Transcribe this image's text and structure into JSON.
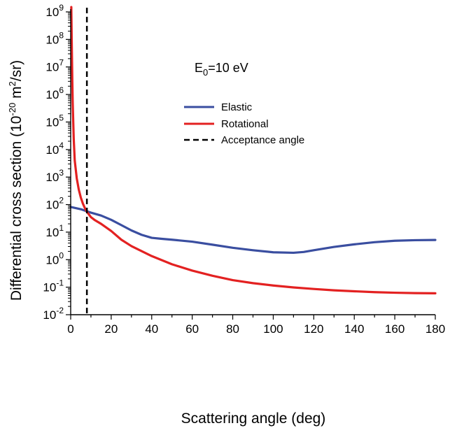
{
  "chart_data": {
    "type": "line",
    "xlabel": "Scattering angle (deg)",
    "ylabel_parts": {
      "prefix": "Differential cross section (10",
      "exp": "-20",
      "mid": " m",
      "exp2": "2",
      "suffix": "/sr)"
    },
    "xlim": [
      0,
      180
    ],
    "ylim": [
      0.01,
      1000000000
    ],
    "yscale": "log",
    "grid": false,
    "legend_position": "upper-middle",
    "x_ticks": [
      0,
      20,
      40,
      60,
      80,
      100,
      120,
      140,
      160,
      180
    ],
    "y_tick_exponents": [
      -2,
      -1,
      0,
      1,
      2,
      3,
      4,
      5,
      6,
      7,
      8,
      9
    ],
    "y_tick_base": "10",
    "annotation": {
      "main": "E",
      "sub": "0",
      "rest": "=10 eV"
    },
    "series": [
      {
        "name": "Elastic",
        "color": "#3a4ea0",
        "style": "solid",
        "x": [
          0,
          5,
          8,
          10,
          15,
          20,
          25,
          30,
          35,
          40,
          45,
          50,
          60,
          70,
          80,
          90,
          100,
          110,
          115,
          120,
          130,
          140,
          150,
          160,
          170,
          180
        ],
        "y": [
          82,
          68,
          57,
          51,
          40,
          28,
          18,
          11.5,
          8,
          6.2,
          5.7,
          5.3,
          4.5,
          3.5,
          2.7,
          2.2,
          1.85,
          1.78,
          1.9,
          2.2,
          2.9,
          3.6,
          4.3,
          4.85,
          5.1,
          5.2
        ]
      },
      {
        "name": "Rotational",
        "color": "#e32121",
        "style": "solid",
        "x": [
          0.3,
          0.5,
          0.8,
          1,
          1.5,
          2,
          3,
          4,
          5,
          6,
          7,
          8,
          10,
          12,
          15,
          20,
          25,
          30,
          40,
          50,
          60,
          70,
          80,
          90,
          100,
          110,
          120,
          130,
          140,
          150,
          160,
          170,
          180
        ],
        "y": [
          1500000000,
          100000000,
          3000000,
          500000,
          25000,
          4000,
          900,
          350,
          180,
          110,
          75,
          55,
          35,
          27,
          20,
          11,
          5.3,
          3.1,
          1.35,
          0.68,
          0.4,
          0.26,
          0.18,
          0.14,
          0.115,
          0.098,
          0.086,
          0.077,
          0.071,
          0.066,
          0.063,
          0.061,
          0.06
        ]
      },
      {
        "name": "Acceptance angle",
        "color": "#000000",
        "style": "dashed",
        "x_value": 8
      }
    ]
  }
}
